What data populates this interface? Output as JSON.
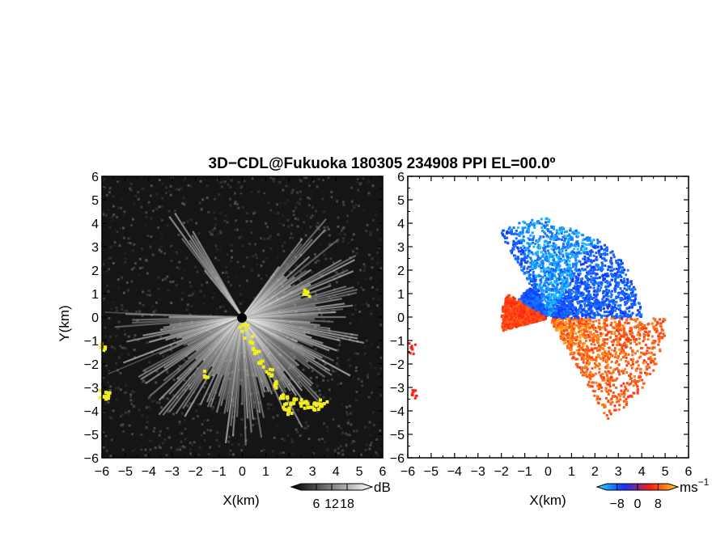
{
  "title": "3D−CDL@Fukuoka 180305 234908 PPI EL=00.0º",
  "colors": {
    "background_left": "#151515",
    "clutter": "#f2ee1c",
    "vel_negative_dark": "#1030ff",
    "vel_negative_light": "#22e0ff",
    "vel_positive_light": "#ffd020",
    "vel_positive_dark": "#ff2010"
  },
  "chart_data": [
    {
      "type": "heatmap",
      "panel": "reflectivity",
      "xlabel": "X(km)",
      "ylabel": "Y(km)",
      "xlim": [
        -6,
        6
      ],
      "ylim": [
        -6,
        6
      ],
      "xticks": [
        "−6",
        "−5",
        "−4",
        "−3",
        "−2",
        "−1",
        "0",
        "1",
        "2",
        "3",
        "4",
        "5",
        "6"
      ],
      "yticks": [
        "−6",
        "−5",
        "−4",
        "−3",
        "−2",
        "−1",
        "0",
        "1",
        "2",
        "3",
        "4",
        "5",
        "6"
      ],
      "colorbar": {
        "unit": "dB",
        "ticks": [
          "6",
          "12",
          "18"
        ],
        "tick_values": [
          6,
          12,
          18
        ],
        "range": [
          0,
          24
        ],
        "colors": [
          "#000000",
          "#ffffff"
        ]
      },
      "sector_deg": [
        120,
        415
      ],
      "blank_sector_deg": [
        130,
        178
      ]
    },
    {
      "type": "heatmap",
      "panel": "doppler_velocity",
      "xlabel": "X(km)",
      "xlim": [
        -6,
        6
      ],
      "ylim": [
        -6,
        6
      ],
      "xticks": [
        "−6",
        "−5",
        "−4",
        "−3",
        "−2",
        "−1",
        "0",
        "1",
        "2",
        "3",
        "4",
        "5",
        "6"
      ],
      "yticks": [
        "−6",
        "−5",
        "−4",
        "−3",
        "−2",
        "−1",
        "0",
        "1",
        "2",
        "3",
        "4",
        "5",
        "6"
      ],
      "colorbar": {
        "unit": "ms",
        "unit_exponent": "−1",
        "ticks": [
          "−8",
          "0",
          "8"
        ],
        "tick_values": [
          -8,
          0,
          8
        ],
        "range": [
          -12,
          12
        ],
        "colors": [
          "#22e0ff",
          "#1030ff",
          "#ff2010",
          "#ffd020"
        ]
      },
      "sector_deg": [
        -60,
        195
      ]
    }
  ]
}
